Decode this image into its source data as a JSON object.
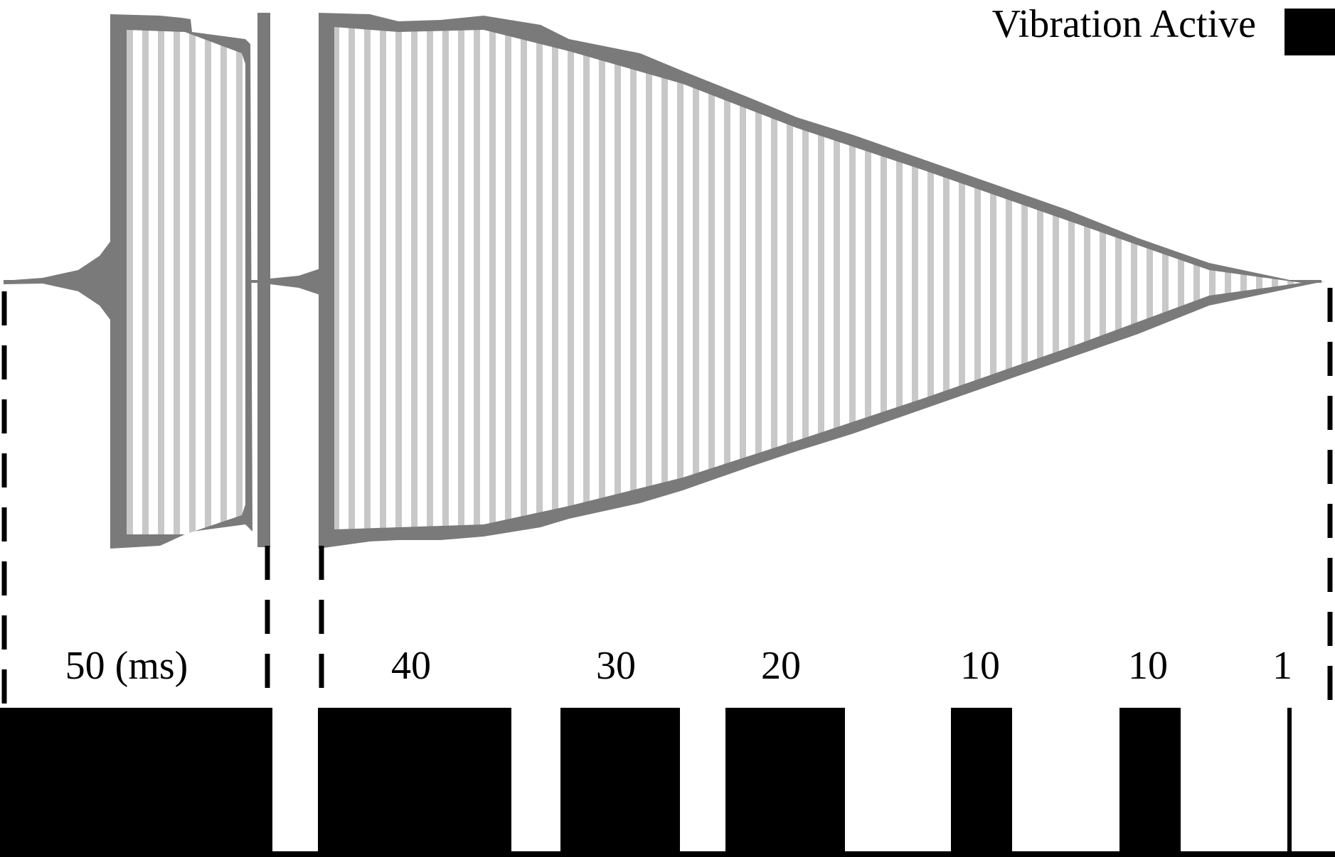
{
  "legend": {
    "label": "Vibration Active",
    "swatch_color": "#000000"
  },
  "colors": {
    "envelope": "#7a7a7a",
    "carrier_stripe": "#c8c8c8",
    "background": "#ffffff",
    "pulse": "#000000",
    "divider": "#000000"
  },
  "pulses": [
    {
      "label": "50 (ms)"
    },
    {
      "label": "40"
    },
    {
      "label": "30"
    },
    {
      "label": "20"
    },
    {
      "label": "10"
    },
    {
      "label": "10"
    },
    {
      "label": "1"
    }
  ]
}
